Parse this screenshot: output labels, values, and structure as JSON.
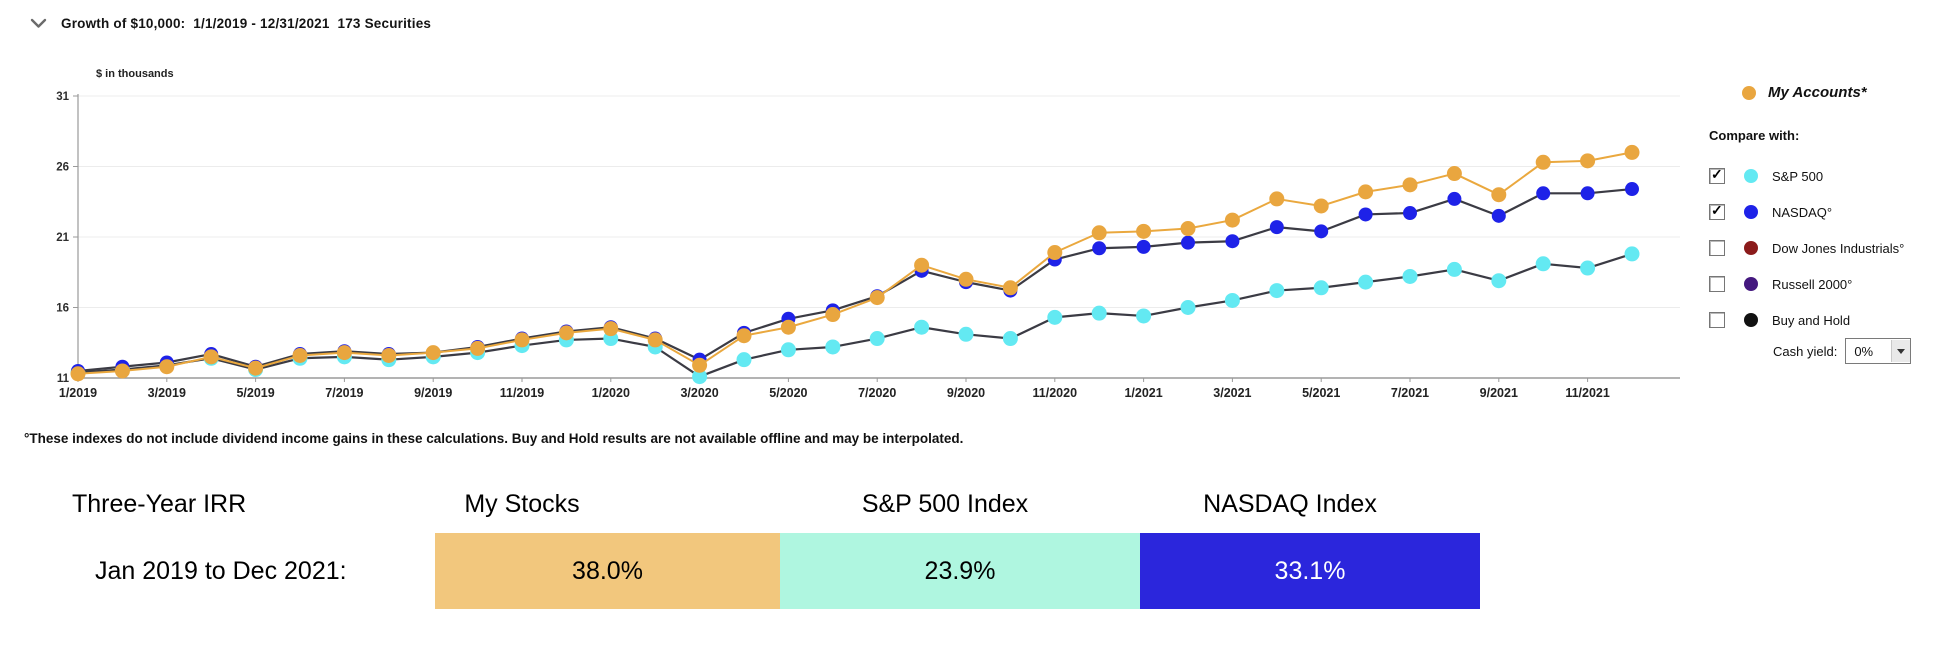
{
  "header": {
    "title": "Growth of $10,000:  1/1/2019 - 12/31/2021  173 Securities"
  },
  "chart_data": {
    "type": "line",
    "y_axis_label": "$ in thousands",
    "ylim": [
      11,
      31
    ],
    "y_ticks": [
      11,
      16,
      21,
      26,
      31
    ],
    "grid": true,
    "legend_position": "right",
    "x": [
      "1/2019",
      "2/2019",
      "3/2019",
      "4/2019",
      "5/2019",
      "6/2019",
      "7/2019",
      "8/2019",
      "9/2019",
      "10/2019",
      "11/2019",
      "12/2019",
      "1/2020",
      "2/2020",
      "3/2020",
      "4/2020",
      "5/2020",
      "6/2020",
      "7/2020",
      "8/2020",
      "9/2020",
      "10/2020",
      "11/2020",
      "12/2020",
      "1/2021",
      "2/2021",
      "3/2021",
      "4/2021",
      "5/2021",
      "6/2021",
      "7/2021",
      "8/2021",
      "9/2021",
      "10/2021",
      "11/2021",
      "12/2021"
    ],
    "x_tick_labels": [
      "1/2019",
      "3/2019",
      "5/2019",
      "7/2019",
      "9/2019",
      "11/2019",
      "1/2020",
      "3/2020",
      "5/2020",
      "7/2020",
      "9/2020",
      "11/2020",
      "1/2021",
      "3/2021",
      "5/2021",
      "7/2021",
      "9/2021",
      "11/2021"
    ],
    "series": [
      {
        "name": "My Accounts*",
        "color": "#E9A63F",
        "line_color": "#EAA83E",
        "dot_r": 7.5,
        "values": [
          11.3,
          11.5,
          11.8,
          12.5,
          11.7,
          12.6,
          12.8,
          12.6,
          12.8,
          13.1,
          13.7,
          14.2,
          14.5,
          13.7,
          11.9,
          14.0,
          14.6,
          15.5,
          16.7,
          19.0,
          18.0,
          17.4,
          19.9,
          21.3,
          21.4,
          21.6,
          22.2,
          23.7,
          23.2,
          24.2,
          24.7,
          25.5,
          24.0,
          26.3,
          26.4,
          27.0
        ]
      },
      {
        "name": "S&P 500",
        "color": "#63E9F2",
        "line_color": "#3B3B44",
        "dot_r": 7.5,
        "values": [
          11.4,
          11.6,
          11.9,
          12.4,
          11.6,
          12.4,
          12.5,
          12.3,
          12.5,
          12.8,
          13.3,
          13.7,
          13.8,
          13.2,
          11.1,
          12.3,
          13.0,
          13.2,
          13.8,
          14.6,
          14.1,
          13.8,
          15.3,
          15.6,
          15.4,
          16.0,
          16.5,
          17.2,
          17.4,
          17.8,
          18.2,
          18.7,
          17.9,
          19.1,
          18.8,
          19.8
        ]
      },
      {
        "name": "NASDAQ",
        "color": "#1E22E8",
        "line_color": "#3B3B44",
        "dot_r": 7,
        "values": [
          11.5,
          11.8,
          12.1,
          12.7,
          11.8,
          12.7,
          12.9,
          12.7,
          12.8,
          13.2,
          13.8,
          14.3,
          14.6,
          13.8,
          12.3,
          14.2,
          15.2,
          15.8,
          16.8,
          18.6,
          17.8,
          17.2,
          19.4,
          20.2,
          20.3,
          20.6,
          20.7,
          21.7,
          21.4,
          22.6,
          22.7,
          23.7,
          22.5,
          24.1,
          24.1,
          24.4
        ]
      }
    ]
  },
  "legend": {
    "my_accounts": {
      "label": "My Accounts*",
      "color": "#E9A63F"
    },
    "compare_with_label": "Compare with:",
    "compare_items": [
      {
        "label": "S&P 500",
        "color": "#63E9F2",
        "checked": true
      },
      {
        "label": "NASDAQ°",
        "color": "#1E22E8",
        "checked": true
      },
      {
        "label": "Dow Jones Industrials°",
        "color": "#8B1B1B",
        "checked": false
      },
      {
        "label": "Russell 2000°",
        "color": "#44187F",
        "checked": false
      },
      {
        "label": "Buy and Hold",
        "color": "#111111",
        "checked": false
      }
    ],
    "cash_yield_label": "Cash yield:",
    "cash_yield_value": "0%"
  },
  "footnote": "°These indexes do not include dividend income gains in these calculations. Buy and Hold results are not available offline and may be interpolated.",
  "irr_table": {
    "header_label": "Three-Year IRR",
    "col_headers": [
      "My Stocks",
      "S&P 500 Index",
      "NASDAQ Index"
    ],
    "row_label": "Jan 2019 to Dec 2021:",
    "values": [
      "38.0%",
      "23.9%",
      "33.1%"
    ],
    "cell_colors": [
      "#F2C77D",
      "#AFF6E0",
      "#2B26DC"
    ],
    "value_text_colors": [
      "#000000",
      "#000000",
      "#FFFFFF"
    ]
  }
}
